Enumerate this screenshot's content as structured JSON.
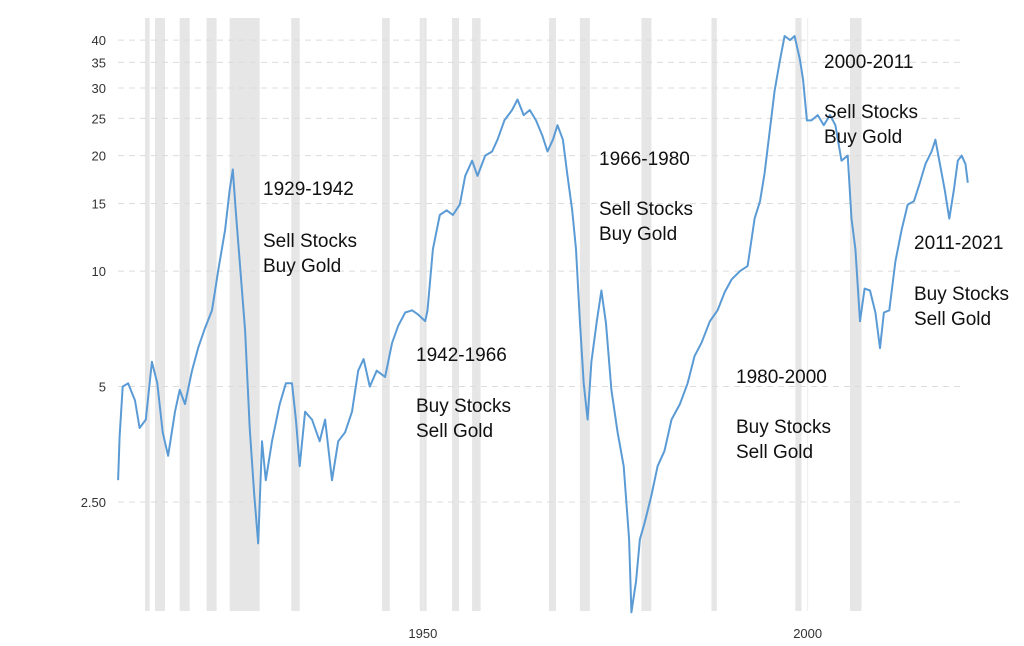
{
  "chart_data": {
    "type": "line",
    "log_scale": true,
    "grid": true,
    "color": "#5b9bd5",
    "shade_color": "#e6e6e6",
    "xlim": [
      1910,
      2022
    ],
    "xticks": [
      1950,
      2000
    ],
    "ylim": [
      1.3,
      42.5
    ],
    "yticks": [
      {
        "value": 2.5,
        "label": "2.50"
      },
      5,
      10,
      15,
      20,
      25,
      30,
      35,
      40
    ],
    "shaded_periods": [
      [
        1913.9,
        1914.5
      ],
      [
        1915.2,
        1916.5
      ],
      [
        1918.4,
        1919.7
      ],
      [
        1921.9,
        1923.2
      ],
      [
        1924.9,
        1928.8
      ],
      [
        1932.9,
        1934.0
      ],
      [
        1944.7,
        1945.7
      ],
      [
        1949.6,
        1950.5
      ],
      [
        1953.8,
        1954.7
      ],
      [
        1956.4,
        1957.5
      ],
      [
        1966.4,
        1967.3
      ],
      [
        1970.4,
        1971.7
      ],
      [
        1978.4,
        1979.7
      ],
      [
        1987.5,
        1988.2
      ],
      [
        1998.4,
        1999.2
      ],
      [
        2005.5,
        2007.0
      ]
    ],
    "x": [
      1910.4,
      1910.6,
      1911.0,
      1911.7,
      1912.6,
      1913.2,
      1914.0,
      1914.8,
      1915.5,
      1916.2,
      1916.9,
      1917.8,
      1918.4,
      1919.1,
      1920.0,
      1920.8,
      1921.7,
      1922.6,
      1923.4,
      1924.3,
      1924.9,
      1925.3,
      1925.7,
      1926.2,
      1926.9,
      1927.5,
      1928.1,
      1928.6,
      1929.1,
      1929.6,
      1930.4,
      1931.4,
      1932.2,
      1933.0,
      1933.5,
      1934.0,
      1934.7,
      1935.6,
      1936.6,
      1937.3,
      1938.2,
      1939.0,
      1939.9,
      1940.8,
      1941.6,
      1942.3,
      1943.1,
      1944.0,
      1945.1,
      1946.0,
      1946.8,
      1947.7,
      1948.6,
      1949.4,
      1950.3,
      1950.6,
      1951.3,
      1952.2,
      1953.1,
      1953.9,
      1954.8,
      1955.5,
      1956.4,
      1957.1,
      1958.1,
      1959.0,
      1959.7,
      1960.6,
      1961.6,
      1962.3,
      1963.1,
      1963.9,
      1964.7,
      1965.5,
      1966.2,
      1966.9,
      1967.5,
      1968.2,
      1968.8,
      1969.4,
      1969.9,
      1970.4,
      1970.9,
      1971.4,
      1971.9,
      1972.6,
      1973.2,
      1973.8,
      1974.5,
      1975.3,
      1976.1,
      1976.8,
      1977.1,
      1977.7,
      1978.2,
      1978.8,
      1979.7,
      1980.5,
      1981.4,
      1982.3,
      1983.4,
      1984.4,
      1985.3,
      1986.2,
      1987.3,
      1988.3,
      1989.2,
      1990.1,
      1991.2,
      1992.2,
      1993.1,
      1993.8,
      1994.4,
      1995.1,
      1995.7,
      1996.4,
      1997.0,
      1997.7,
      1998.3,
      1999.0,
      1999.4,
      1999.9,
      2000.5,
      2001.3,
      2002.1,
      2002.9,
      2003.6,
      2004.4,
      2005.2,
      2005.7,
      2006.2,
      2006.8,
      2007.4,
      2008.1,
      2008.8,
      2009.4,
      2009.9,
      2010.6,
      2011.4,
      2012.2,
      2013.0,
      2013.8,
      2014.5,
      2015.3,
      2016.1,
      2016.6,
      2017.1,
      2017.8,
      2018.4,
      2019.0,
      2019.5,
      2020.0,
      2020.5,
      2020.8
    ],
    "values": [
      2.85,
      3.7,
      5.0,
      5.1,
      4.6,
      3.9,
      4.1,
      5.8,
      5.1,
      3.8,
      3.3,
      4.3,
      4.9,
      4.5,
      5.5,
      6.3,
      7.1,
      7.9,
      10,
      12.8,
      16.3,
      18.4,
      14.3,
      10.6,
      7.0,
      3.9,
      2.6,
      1.95,
      3.6,
      2.85,
      3.6,
      4.5,
      5.1,
      5.1,
      4.1,
      3.1,
      4.3,
      4.1,
      3.6,
      4.1,
      2.85,
      3.6,
      3.8,
      4.3,
      5.5,
      5.9,
      5.0,
      5.5,
      5.3,
      6.5,
      7.2,
      7.8,
      7.9,
      7.7,
      7.4,
      7.9,
      11.4,
      14.0,
      14.4,
      14.0,
      14.9,
      17.7,
      19.4,
      17.7,
      20,
      20.5,
      22,
      24.7,
      26.3,
      28,
      25.5,
      26.3,
      24.7,
      22.6,
      20.5,
      22,
      24,
      22,
      17.7,
      14.4,
      11.4,
      7.4,
      5.1,
      4.1,
      5.8,
      7.4,
      8.9,
      7.3,
      4.9,
      3.8,
      3.1,
      2.0,
      1.29,
      1.55,
      2.0,
      2.2,
      2.6,
      3.1,
      3.4,
      4.1,
      4.5,
      5.1,
      6.0,
      6.5,
      7.4,
      7.9,
      8.8,
      9.5,
      10,
      10.3,
      13.7,
      15.2,
      18,
      23.5,
      29.5,
      35.5,
      41,
      40,
      41,
      35.5,
      31.5,
      24.7,
      24.7,
      25.5,
      24,
      25.5,
      24,
      19.4,
      20,
      13.7,
      11.4,
      7.4,
      9.0,
      8.9,
      7.8,
      6.3,
      7.8,
      7.9,
      10.6,
      12.8,
      14.9,
      15.2,
      16.8,
      19,
      20.5,
      22,
      19.4,
      16.3,
      13.7,
      16.3,
      19.4,
      20,
      19,
      17
    ],
    "annotations": [
      {
        "period": "1929-1942",
        "lines": [
          "Sell Stocks",
          "Buy Gold"
        ]
      },
      {
        "period": "1942-1966",
        "lines": [
          "Buy Stocks",
          "Sell Gold"
        ]
      },
      {
        "period": "1966-1980",
        "lines": [
          "Sell Stocks",
          "Buy Gold"
        ]
      },
      {
        "period": "1980-2000",
        "lines": [
          "Buy Stocks",
          "Sell Gold"
        ]
      },
      {
        "period": "2000-2011",
        "lines": [
          "Sell Stocks",
          "Buy Gold"
        ]
      },
      {
        "period": "2011-2021",
        "lines": [
          "Buy Stocks",
          "Sell Gold"
        ]
      }
    ]
  }
}
